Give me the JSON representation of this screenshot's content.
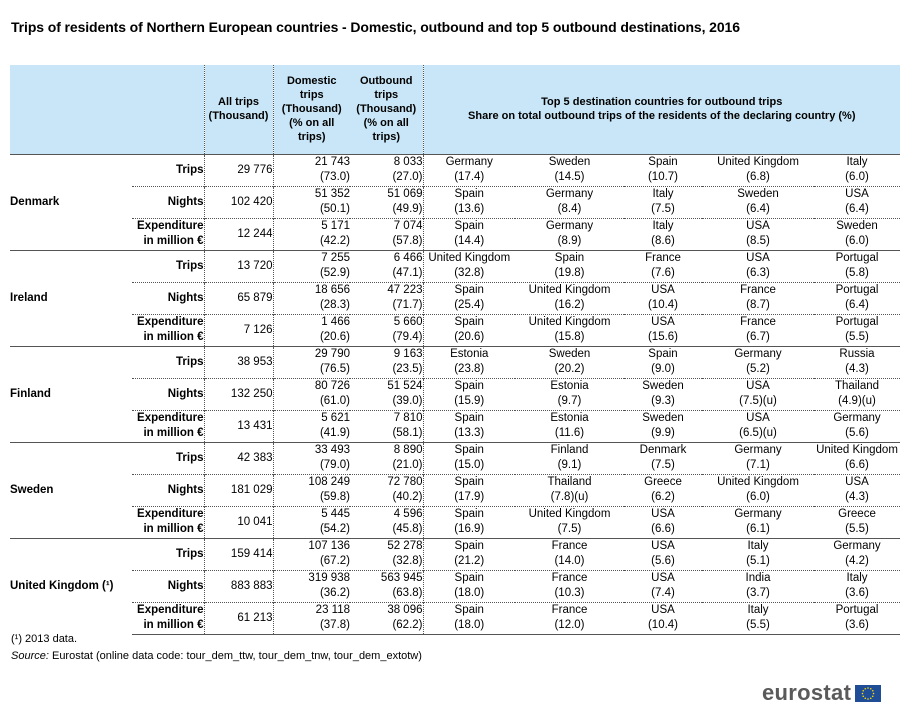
{
  "title": "Trips of residents of Northern European countries - Domestic, outbound and top 5 outbound destinations, 2016",
  "headers": {
    "all_trips": "All trips (Thousand)",
    "domestic": "Domestic trips (Thousand) (% on all trips)",
    "outbound": "Outbound trips (Thousand) (% on all trips)",
    "top5_line1": "Top 5 destination countries for outbound trips",
    "top5_line2": "Share on total outbound trips of the residents of the declaring country (%)"
  },
  "countries": [
    {
      "name": "Denmark",
      "rows": [
        {
          "indicator": "Trips",
          "all": "29 776",
          "dom": "21 743",
          "dom_pct": "(73.0)",
          "out": "8 033",
          "out_pct": "(27.0)",
          "dest": [
            [
              "Germany",
              "(17.4)"
            ],
            [
              "Sweden",
              "(14.5)"
            ],
            [
              "Spain",
              "(10.7)"
            ],
            [
              "United Kingdom",
              "(6.8)"
            ],
            [
              "Italy",
              "(6.0)"
            ]
          ]
        },
        {
          "indicator": "Nights",
          "all": "102 420",
          "dom": "51 352",
          "dom_pct": "(50.1)",
          "out": "51 069",
          "out_pct": "(49.9)",
          "dest": [
            [
              "Spain",
              "(13.6)"
            ],
            [
              "Germany",
              "(8.4)"
            ],
            [
              "Italy",
              "(7.5)"
            ],
            [
              "Sweden",
              "(6.4)"
            ],
            [
              "USA",
              "(6.4)"
            ]
          ]
        },
        {
          "indicator": "Expenditure in million €",
          "all": "12 244",
          "dom": "5 171",
          "dom_pct": "(42.2)",
          "out": "7 074",
          "out_pct": "(57.8)",
          "dest": [
            [
              "Spain",
              "(14.4)"
            ],
            [
              "Germany",
              "(8.9)"
            ],
            [
              "Italy",
              "(8.6)"
            ],
            [
              "USA",
              "(8.5)"
            ],
            [
              "Sweden",
              "(6.0)"
            ]
          ]
        }
      ]
    },
    {
      "name": "Ireland",
      "rows": [
        {
          "indicator": "Trips",
          "all": "13 720",
          "dom": "7 255",
          "dom_pct": "(52.9)",
          "out": "6 466",
          "out_pct": "(47.1)",
          "dest": [
            [
              "United Kingdom",
              "(32.8)"
            ],
            [
              "Spain",
              "(19.8)"
            ],
            [
              "France",
              "(7.6)"
            ],
            [
              "USA",
              "(6.3)"
            ],
            [
              "Portugal",
              "(5.8)"
            ]
          ]
        },
        {
          "indicator": "Nights",
          "all": "65 879",
          "dom": "18 656",
          "dom_pct": "(28.3)",
          "out": "47 223",
          "out_pct": "(71.7)",
          "dest": [
            [
              "Spain",
              "(25.4)"
            ],
            [
              "United Kingdom",
              "(16.2)"
            ],
            [
              "USA",
              "(10.4)"
            ],
            [
              "France",
              "(8.7)"
            ],
            [
              "Portugal",
              "(6.4)"
            ]
          ]
        },
        {
          "indicator": "Expenditure in million €",
          "all": "7 126",
          "dom": "1 466",
          "dom_pct": "(20.6)",
          "out": "5 660",
          "out_pct": "(79.4)",
          "dest": [
            [
              "Spain",
              "(20.6)"
            ],
            [
              "United Kingdom",
              "(15.8)"
            ],
            [
              "USA",
              "(15.6)"
            ],
            [
              "France",
              "(6.7)"
            ],
            [
              "Portugal",
              "(5.5)"
            ]
          ]
        }
      ]
    },
    {
      "name": "Finland",
      "rows": [
        {
          "indicator": "Trips",
          "all": "38 953",
          "dom": "29 790",
          "dom_pct": "(76.5)",
          "out": "9 163",
          "out_pct": "(23.5)",
          "dest": [
            [
              "Estonia",
              "(23.8)"
            ],
            [
              "Sweden",
              "(20.2)"
            ],
            [
              "Spain",
              "(9.0)"
            ],
            [
              "Germany",
              "(5.2)"
            ],
            [
              "Russia",
              "(4.3)"
            ]
          ]
        },
        {
          "indicator": "Nights",
          "all": "132 250",
          "dom": "80 726",
          "dom_pct": "(61.0)",
          "out": "51 524",
          "out_pct": "(39.0)",
          "dest": [
            [
              "Spain",
              "(15.9)"
            ],
            [
              "Estonia",
              "(9.7)"
            ],
            [
              "Sweden",
              "(9.3)"
            ],
            [
              "USA",
              "(7.5)(u)"
            ],
            [
              "Thailand",
              "(4.9)(u)"
            ]
          ]
        },
        {
          "indicator": "Expenditure in million €",
          "all": "13 431",
          "dom": "5 621",
          "dom_pct": "(41.9)",
          "out": "7 810",
          "out_pct": "(58.1)",
          "dest": [
            [
              "Spain",
              "(13.3)"
            ],
            [
              "Estonia",
              "(11.6)"
            ],
            [
              "Sweden",
              "(9.9)"
            ],
            [
              "USA",
              "(6.5)(u)"
            ],
            [
              "Germany",
              "(5.6)"
            ]
          ]
        }
      ]
    },
    {
      "name": "Sweden",
      "rows": [
        {
          "indicator": "Trips",
          "all": "42 383",
          "dom": "33 493",
          "dom_pct": "(79.0)",
          "out": "8 890",
          "out_pct": "(21.0)",
          "dest": [
            [
              "Spain",
              "(15.0)"
            ],
            [
              "Finland",
              "(9.1)"
            ],
            [
              "Denmark",
              "(7.5)"
            ],
            [
              "Germany",
              "(7.1)"
            ],
            [
              "United Kingdom",
              "(6.6)"
            ]
          ]
        },
        {
          "indicator": "Nights",
          "all": "181 029",
          "dom": "108 249",
          "dom_pct": "(59.8)",
          "out": "72 780",
          "out_pct": "(40.2)",
          "dest": [
            [
              "Spain",
              "(17.9)"
            ],
            [
              "Thailand",
              "(7.8)(u)"
            ],
            [
              "Greece",
              "(6.2)"
            ],
            [
              "United Kingdom",
              "(6.0)"
            ],
            [
              "USA",
              "(4.3)"
            ]
          ]
        },
        {
          "indicator": "Expenditure in million €",
          "all": "10 041",
          "dom": "5 445",
          "dom_pct": "(54.2)",
          "out": "4 596",
          "out_pct": "(45.8)",
          "dest": [
            [
              "Spain",
              "(16.9)"
            ],
            [
              "United Kingdom",
              "(7.5)"
            ],
            [
              "USA",
              "(6.6)"
            ],
            [
              "Germany",
              "(6.1)"
            ],
            [
              "Greece",
              "(5.5)"
            ]
          ]
        }
      ]
    },
    {
      "name": "United Kingdom (¹)",
      "rows": [
        {
          "indicator": "Trips",
          "all": "159 414",
          "dom": "107 136",
          "dom_pct": "(67.2)",
          "out": "52 278",
          "out_pct": "(32.8)",
          "dest": [
            [
              "Spain",
              "(21.2)"
            ],
            [
              "France",
              "(14.0)"
            ],
            [
              "USA",
              "(5.6)"
            ],
            [
              "Italy",
              "(5.1)"
            ],
            [
              "Germany",
              "(4.2)"
            ]
          ]
        },
        {
          "indicator": "Nights",
          "all": "883 883",
          "dom": "319 938",
          "dom_pct": "(36.2)",
          "out": "563 945",
          "out_pct": "(63.8)",
          "dest": [
            [
              "Spain",
              "(18.0)"
            ],
            [
              "France",
              "(10.3)"
            ],
            [
              "USA",
              "(7.4)"
            ],
            [
              "India",
              "(3.7)"
            ],
            [
              "Italy",
              "(3.6)"
            ]
          ]
        },
        {
          "indicator": "Expenditure in million €",
          "all": "61 213",
          "dom": "23 118",
          "dom_pct": "(37.8)",
          "out": "38 096",
          "out_pct": "(62.2)",
          "dest": [
            [
              "Spain",
              "(18.0)"
            ],
            [
              "France",
              "(12.0)"
            ],
            [
              "USA",
              "(10.4)"
            ],
            [
              "Italy",
              "(5.5)"
            ],
            [
              "Portugal",
              "(3.6)"
            ]
          ]
        }
      ]
    }
  ],
  "footnote": "(¹) 2013 data.",
  "source_label": "Source:",
  "source_text": " Eurostat (online data code: tour_dem_ttw, tour_dem_tnw, tour_dem_extotw)",
  "logo_text": "eurostat",
  "colors": {
    "header_bg": "#c8e6f7",
    "flag_blue": "#1f4e96",
    "flag_star": "#ffdd00"
  }
}
